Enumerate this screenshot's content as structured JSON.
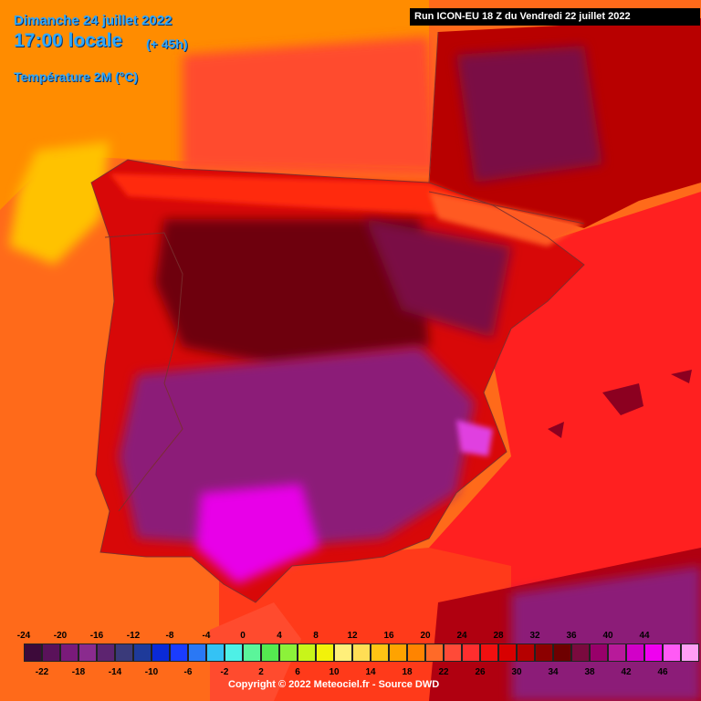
{
  "header": {
    "date": "Dimanche 24 juillet 2022",
    "time": "17:00 locale",
    "lead": "(+ 45h)",
    "parameter": "Température 2M (°C)"
  },
  "run_label": "Run ICON-EU 18 Z du Vendredi 22 juillet 2022",
  "copyright": "Copyright © 2022 Meteociel.fr - Source DWD",
  "legend": {
    "unit": "°C",
    "ticks_top": [
      "-24",
      "-20",
      "-16",
      "-12",
      "-8",
      "-4",
      "0",
      "4",
      "8",
      "12",
      "16",
      "20",
      "24",
      "28",
      "32",
      "36",
      "40",
      "44"
    ],
    "ticks_bottom": [
      "-22",
      "-18",
      "-14",
      "-10",
      "-6",
      "-2",
      "2",
      "6",
      "10",
      "14",
      "18",
      "22",
      "26",
      "30",
      "34",
      "38",
      "42",
      "46"
    ],
    "colors": [
      "#3d0a3a",
      "#5a125a",
      "#7a1a7a",
      "#8a2b8e",
      "#5d2470",
      "#3a3a7a",
      "#1e3a9a",
      "#0a2ad8",
      "#1a3cff",
      "#2a78f5",
      "#34c2f5",
      "#4ef0e6",
      "#5bf59a",
      "#55ea50",
      "#8cf23a",
      "#c8f51a",
      "#f2f20a",
      "#ffef7a",
      "#ffde55",
      "#ffc414",
      "#ffa300",
      "#ff8400",
      "#ff6a28",
      "#ff4a38",
      "#ff2e2e",
      "#f21010",
      "#d80000",
      "#b50000",
      "#8c0000",
      "#6e0000",
      "#7a0a3e",
      "#98006a",
      "#b81a9a",
      "#d200c8",
      "#f000f0",
      "#ff5af5",
      "#ff9ef5"
    ]
  },
  "map": {
    "region": "Iberian Peninsula",
    "palette": {
      "ocean_north": "#ff8c00",
      "galicia_coast": "#ffc200",
      "bay_of_biscay": "#ff4b2e",
      "atlantic": "#ff6a1a",
      "mediterranean": "#ff2020",
      "land_base": "#b80000",
      "mountains": "#e80808",
      "meseta": "#6e0010",
      "interior_hot": "#7a1045",
      "south_hot": "#8c1a78",
      "hottest": "#e800e8",
      "borders": "#7a2e2e"
    }
  }
}
